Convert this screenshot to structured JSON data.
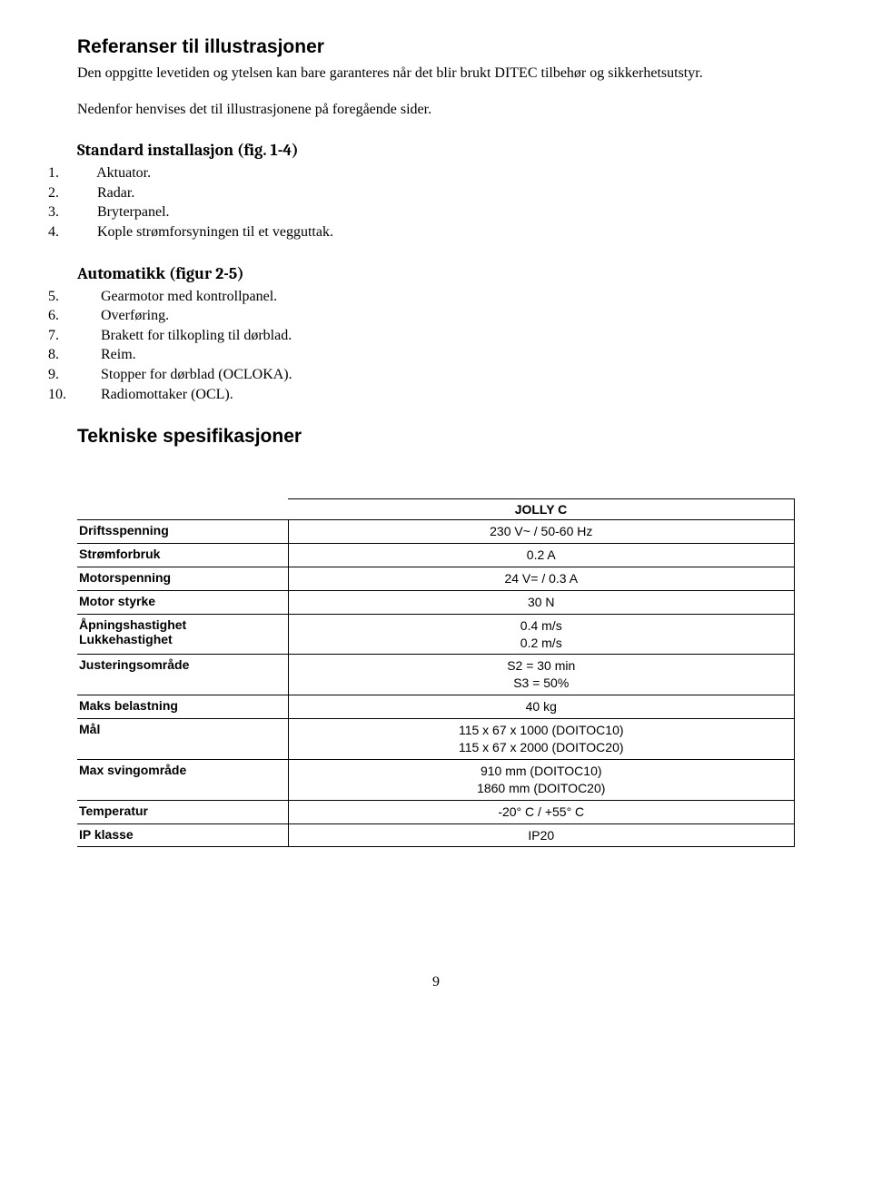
{
  "section1": {
    "title": "Referanser til illustrasjoner",
    "para1": "Den oppgitte levetiden og ytelsen kan bare garanteres når det blir brukt DITEC tilbehør og sikkerhetsutstyr.",
    "para2": "Nedenfor henvises det til illustrasjonene på foregående sider."
  },
  "standard": {
    "title": "Standard installasjon (fig. 1-4)",
    "items": [
      "Aktuator.",
      "Radar.",
      "Bryterpanel.",
      "Kople strømforsyningen til et vegguttak."
    ]
  },
  "automatikk": {
    "title": "Automatikk (figur 2-5)",
    "items": [
      "Gearmotor med kontrollpanel.",
      "Overføring.",
      "Brakett for tilkopling til dørblad.",
      "Reim.",
      "Stopper for dørblad (OCLOKA).",
      "Radiomottaker (OCL)."
    ]
  },
  "tech": {
    "title": "Tekniske spesifikasjoner",
    "header": "JOLLY C",
    "rows": [
      {
        "label": "Driftsspenning",
        "value": "230 V~ / 50-60 Hz"
      },
      {
        "label": "Strømforbruk",
        "value": "0.2 A"
      },
      {
        "label": "Motorspenning",
        "value": "24 V= / 0.3 A"
      },
      {
        "label": "Motor styrke",
        "value": "30 N"
      },
      {
        "label": "Åpningshastighet\nLukkehastighet",
        "value": "0.4 m/s\n0.2 m/s"
      },
      {
        "label": "Justeringsområde",
        "value": "S2 = 30 min\nS3 = 50%"
      },
      {
        "label": "Maks belastning",
        "value": "40 kg"
      },
      {
        "label": "Mål",
        "value": "115 x 67 x 1000 (DOITOC10)\n115 x 67 x 2000 (DOITOC20)"
      },
      {
        "label": "Max svingområde",
        "value": "910 mm (DOITOC10)\n1860 mm (DOITOC20)"
      },
      {
        "label": "Temperatur",
        "value": "-20° C / +55° C"
      },
      {
        "label": "IP klasse",
        "value": "IP20"
      }
    ]
  },
  "pageNumber": "9"
}
